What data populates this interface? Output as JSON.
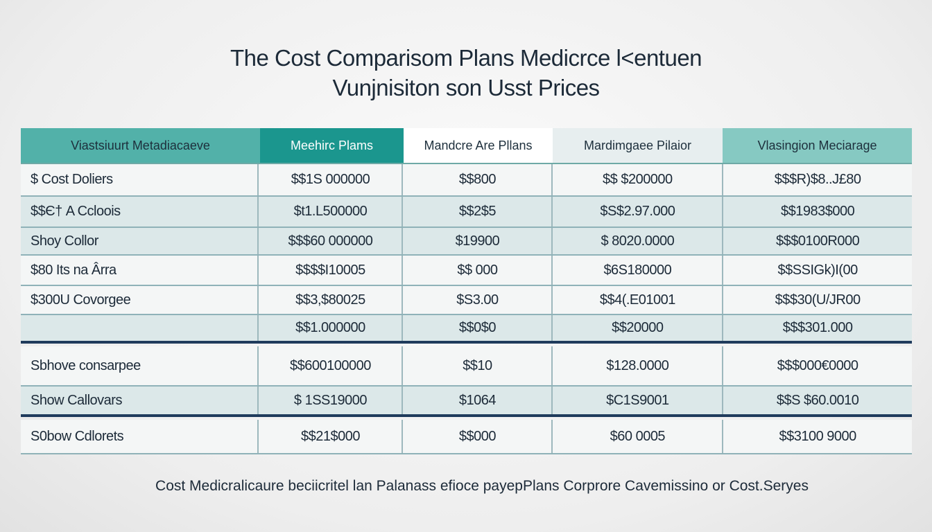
{
  "header": {
    "title": "The Cost Comparisom  Plans Medicrce   l<entuen",
    "subtitle": "Vunjnisiton son Usst Prices"
  },
  "table": {
    "columns": [
      "Viastsiuurt Metadiacaeve",
      "Meehirc Plams",
      "Mandcre Are  Pllans",
      "Mardimgaee Pilaior",
      "Vlasingion Meciarage"
    ],
    "rows": [
      [
        "$ Cost Doliers",
        "$$1S 000000",
        "$$800",
        "$$ $200000",
        "$$$R)$8..J£80"
      ],
      [
        "$$Є† A Ccloois",
        "$t1.L500000",
        "$$2$5",
        "$S$2.97.000",
        "$$1983$000"
      ],
      [
        "Shoy Collor",
        "$$$60 000000",
        "$19900",
        "$ 8020.0000",
        "$$$0100R000"
      ],
      [
        "$80 Its na Ârra",
        "$$$$I10005",
        "$$ 000",
        "$6S180000",
        "$$SSIGk)I(00"
      ],
      [
        "$300U Covorgee",
        "$$3,$80025",
        "$S3.00",
        "$$4(.E01001",
        "$$$30(U/JR00"
      ],
      [
        "",
        "$$1.000000",
        "$$0$0",
        "$$20000",
        "$$$301.000"
      ],
      [
        "Sbhove consarpee",
        "$$600100000",
        "$$10",
        "$128.0000",
        "$$$000€0000"
      ],
      [
        "Show Callovars",
        "$ 1SS19000",
        "$1064",
        "$C1S9001",
        "$$S $60.0010"
      ],
      [
        "S0bow Cdlorets",
        "$$21$000",
        "$$000",
        "$60 0005",
        "$$3100 9000"
      ]
    ]
  },
  "footer": {
    "text": "Cost Medicralicaure beciicritel lan Palanass efioce payepPlans Corprore Cavemissino or Cost.Seryes"
  }
}
